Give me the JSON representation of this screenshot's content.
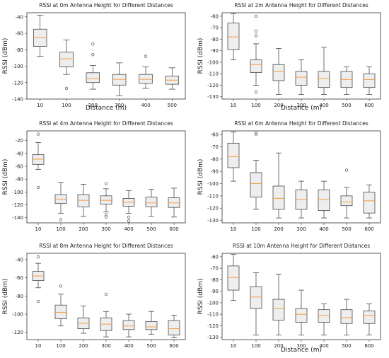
{
  "chart_data": [
    {
      "type": "box",
      "title": "RSSI at 0m Antenna Height for Different Distances",
      "xlabel": "Distance (m)",
      "ylabel": "RSSI (dBm)",
      "ylim": [
        -140,
        -35
      ],
      "yticks": [
        -140,
        -120,
        -100,
        -80,
        -60,
        -40
      ],
      "categories": [
        "10",
        "100",
        "200",
        "300",
        "400",
        "500"
      ],
      "boxes": [
        {
          "min": -88,
          "q1": -76,
          "median": -65,
          "q3": -55,
          "max": -38,
          "outliers": []
        },
        {
          "min": -110,
          "q1": -101,
          "median": -91,
          "q3": -83,
          "max": -68,
          "outliers": [
            -127
          ]
        },
        {
          "min": -128,
          "q1": -120,
          "median": -115,
          "q3": -108,
          "max": -99,
          "outliers": [
            -73,
            -86
          ]
        },
        {
          "min": -136,
          "q1": -123,
          "median": -116,
          "q3": -110,
          "max": -96,
          "outliers": []
        },
        {
          "min": -127,
          "q1": -121,
          "median": -116,
          "q3": -110,
          "max": -101,
          "outliers": [
            -88
          ]
        },
        {
          "min": -128,
          "q1": -122,
          "median": -117,
          "q3": -112,
          "max": -102,
          "outliers": []
        }
      ]
    },
    {
      "type": "box",
      "title": "RSSI at 2m Antenna Height for Different Distances",
      "xlabel": "Distance (m)",
      "ylabel": "RSSI (dBm)",
      "ylim": [
        -132,
        -57
      ],
      "yticks": [
        -130,
        -120,
        -110,
        -100,
        -90,
        -80,
        -70,
        -60
      ],
      "categories": [
        "10",
        "100",
        "200",
        "300",
        "400",
        "500",
        "600"
      ],
      "boxes": [
        {
          "min": -98,
          "q1": -89,
          "median": -78,
          "q3": -66,
          "max": -58,
          "outliers": []
        },
        {
          "min": -120,
          "q1": -109,
          "median": -102,
          "q3": -98,
          "max": -84,
          "outliers": [
            -60,
            -73,
            -77,
            -126
          ]
        },
        {
          "min": -128,
          "q1": -116,
          "median": -108,
          "q3": -102,
          "max": -88,
          "outliers": []
        },
        {
          "min": -128,
          "q1": -120,
          "median": -113,
          "q3": -108,
          "max": -98,
          "outliers": []
        },
        {
          "min": -128,
          "q1": -122,
          "median": -114,
          "q3": -108,
          "max": -87,
          "outliers": []
        },
        {
          "min": -128,
          "q1": -122,
          "median": -115,
          "q3": -108,
          "max": -104,
          "outliers": []
        },
        {
          "min": -128,
          "q1": -122,
          "median": -115,
          "q3": -110,
          "max": -104,
          "outliers": []
        }
      ]
    },
    {
      "type": "box",
      "title": "RSSI at 4m Antenna Height for Different Distances",
      "xlabel": "",
      "ylabel": "RSSI (dBm)",
      "ylim": [
        -148,
        -5
      ],
      "yticks": [
        -140,
        -120,
        -100,
        -80,
        -60,
        -40,
        -20
      ],
      "categories": [
        "10",
        "100",
        "200",
        "300",
        "400",
        "500",
        "600"
      ],
      "boxes": [
        {
          "min": -65,
          "q1": -57,
          "median": -49,
          "q3": -42,
          "max": -23,
          "outliers": [
            -10,
            -93
          ]
        },
        {
          "min": -133,
          "q1": -118,
          "median": -111,
          "q3": -104,
          "max": -85,
          "outliers": [
            -143
          ]
        },
        {
          "min": -138,
          "q1": -123,
          "median": -113,
          "q3": -104,
          "max": -88,
          "outliers": []
        },
        {
          "min": -131,
          "q1": -119,
          "median": -113,
          "q3": -106,
          "max": -95,
          "outliers": [
            -87,
            -135,
            -139
          ]
        },
        {
          "min": -133,
          "q1": -122,
          "median": -116,
          "q3": -110,
          "max": -98,
          "outliers": [
            -139,
            -145
          ]
        },
        {
          "min": -138,
          "q1": -123,
          "median": -117,
          "q3": -108,
          "max": -96,
          "outliers": []
        },
        {
          "min": -139,
          "q1": -124,
          "median": -117,
          "q3": -109,
          "max": -94,
          "outliers": []
        }
      ]
    },
    {
      "type": "box",
      "title": "RSSI at 6m Antenna Height for Different Distances",
      "xlabel": "",
      "ylabel": "RSSI (dBm)",
      "ylim": [
        -132,
        -57
      ],
      "yticks": [
        -130,
        -120,
        -110,
        -100,
        -90,
        -80,
        -70,
        -60
      ],
      "categories": [
        "10",
        "100",
        "200",
        "300",
        "400",
        "500",
        "600"
      ],
      "boxes": [
        {
          "min": -98,
          "q1": -87,
          "median": -78,
          "q3": -67,
          "max": -58,
          "outliers": []
        },
        {
          "min": -121,
          "q1": -111,
          "median": -100,
          "q3": -91,
          "max": -81,
          "outliers": [
            -58,
            -60
          ]
        },
        {
          "min": -128,
          "q1": -121,
          "median": -112,
          "q3": -102,
          "max": -75,
          "outliers": []
        },
        {
          "min": -128,
          "q1": -121,
          "median": -113,
          "q3": -105,
          "max": -98,
          "outliers": []
        },
        {
          "min": -128,
          "q1": -122,
          "median": -113,
          "q3": -105,
          "max": -98,
          "outliers": []
        },
        {
          "min": -128,
          "q1": -118,
          "median": -115,
          "q3": -110,
          "max": -103,
          "outliers": [
            -89
          ]
        },
        {
          "min": -128,
          "q1": -124,
          "median": -114,
          "q3": -107,
          "max": -101,
          "outliers": []
        }
      ]
    },
    {
      "type": "box",
      "title": "RSSI at 8m Antenna Height for Different Distances",
      "xlabel": "",
      "ylabel": "RSSI (dBm)",
      "ylim": [
        -128,
        -33
      ],
      "yticks": [
        -120,
        -100,
        -80,
        -60,
        -40
      ],
      "categories": [
        "10",
        "100",
        "200",
        "300",
        "400",
        "500",
        "600"
      ],
      "boxes": [
        {
          "min": -71,
          "q1": -63,
          "median": -58,
          "q3": -53,
          "max": -44,
          "outliers": [
            -37,
            -86
          ]
        },
        {
          "min": -113,
          "q1": -105,
          "median": -98,
          "q3": -90,
          "max": -78,
          "outliers": [
            -69
          ]
        },
        {
          "min": -121,
          "q1": -116,
          "median": -110,
          "q3": -104,
          "max": -91,
          "outliers": []
        },
        {
          "min": -125,
          "q1": -118,
          "median": -111,
          "q3": -104,
          "max": -97,
          "outliers": [
            -78
          ]
        },
        {
          "min": -125,
          "q1": -117,
          "median": -113,
          "q3": -107,
          "max": -100,
          "outliers": []
        },
        {
          "min": -122,
          "q1": -117,
          "median": -114,
          "q3": -108,
          "max": -97,
          "outliers": []
        },
        {
          "min": -126,
          "q1": -123,
          "median": -116,
          "q3": -107,
          "max": -101,
          "outliers": []
        }
      ]
    },
    {
      "type": "box",
      "title": "RSSI at 10m Antenna Height for Different Distances",
      "xlabel": "Distance (m)",
      "ylabel": "RSSI (dBm)",
      "ylim": [
        -132,
        -57
      ],
      "yticks": [
        -130,
        -120,
        -110,
        -100,
        -90,
        -80,
        -70,
        -60
      ],
      "categories": [
        "10",
        "100",
        "200",
        "300",
        "400",
        "500",
        "600"
      ],
      "boxes": [
        {
          "min": -98,
          "q1": -89,
          "median": -78,
          "q3": -68,
          "max": -58,
          "outliers": []
        },
        {
          "min": -128,
          "q1": -105,
          "median": -95,
          "q3": -86,
          "max": -74,
          "outliers": []
        },
        {
          "min": -128,
          "q1": -115,
          "median": -105,
          "q3": -97,
          "max": -75,
          "outliers": []
        },
        {
          "min": -128,
          "q1": -117,
          "median": -110,
          "q3": -105,
          "max": -89,
          "outliers": []
        },
        {
          "min": -128,
          "q1": -117,
          "median": -111,
          "q3": -106,
          "max": -101,
          "outliers": []
        },
        {
          "min": -128,
          "q1": -118,
          "median": -113,
          "q3": -106,
          "max": -97,
          "outliers": []
        },
        {
          "min": -128,
          "q1": -118,
          "median": -111,
          "q3": -107,
          "max": -101,
          "outliers": []
        }
      ]
    }
  ]
}
